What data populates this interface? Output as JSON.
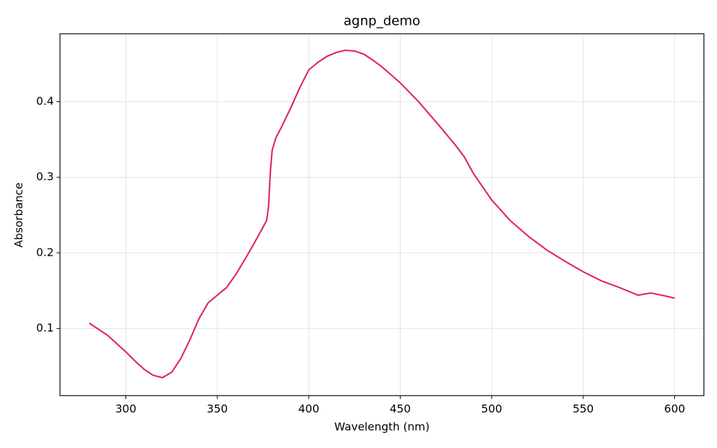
{
  "chart_data": {
    "type": "line",
    "title": "agnp_demo",
    "x_label": "Wavelength (nm)",
    "y_label": "Absorbance",
    "x": [
      280,
      290,
      300,
      305,
      310,
      315,
      320,
      325,
      330,
      335,
      340,
      345,
      350,
      355,
      360,
      365,
      370,
      375,
      377,
      378,
      379,
      380,
      382,
      385,
      390,
      395,
      400,
      405,
      410,
      415,
      420,
      425,
      430,
      435,
      440,
      450,
      460,
      470,
      480,
      485,
      490,
      500,
      510,
      520,
      530,
      540,
      550,
      560,
      570,
      575,
      580,
      587,
      595,
      600
    ],
    "series": [
      {
        "name": "agnp_demo",
        "color": "#e0246a",
        "values": [
          0.107,
          0.091,
          0.069,
          0.057,
          0.046,
          0.038,
          0.035,
          0.042,
          0.06,
          0.085,
          0.113,
          0.134,
          0.144,
          0.154,
          0.171,
          0.191,
          0.212,
          0.234,
          0.243,
          0.261,
          0.307,
          0.336,
          0.352,
          0.366,
          0.391,
          0.418,
          0.442,
          0.452,
          0.46,
          0.465,
          0.468,
          0.467,
          0.463,
          0.455,
          0.446,
          0.425,
          0.4,
          0.372,
          0.343,
          0.327,
          0.305,
          0.27,
          0.243,
          0.222,
          0.204,
          0.189,
          0.175,
          0.163,
          0.154,
          0.149,
          0.144,
          0.147,
          0.143,
          0.14
        ]
      }
    ],
    "xlim": [
      264,
      616
    ],
    "ylim": [
      0.0112,
      0.4898
    ],
    "xticks": [
      300,
      350,
      400,
      450,
      500,
      550,
      600
    ],
    "yticks": [
      0.1,
      0.2,
      0.3,
      0.4
    ],
    "grid": true
  }
}
